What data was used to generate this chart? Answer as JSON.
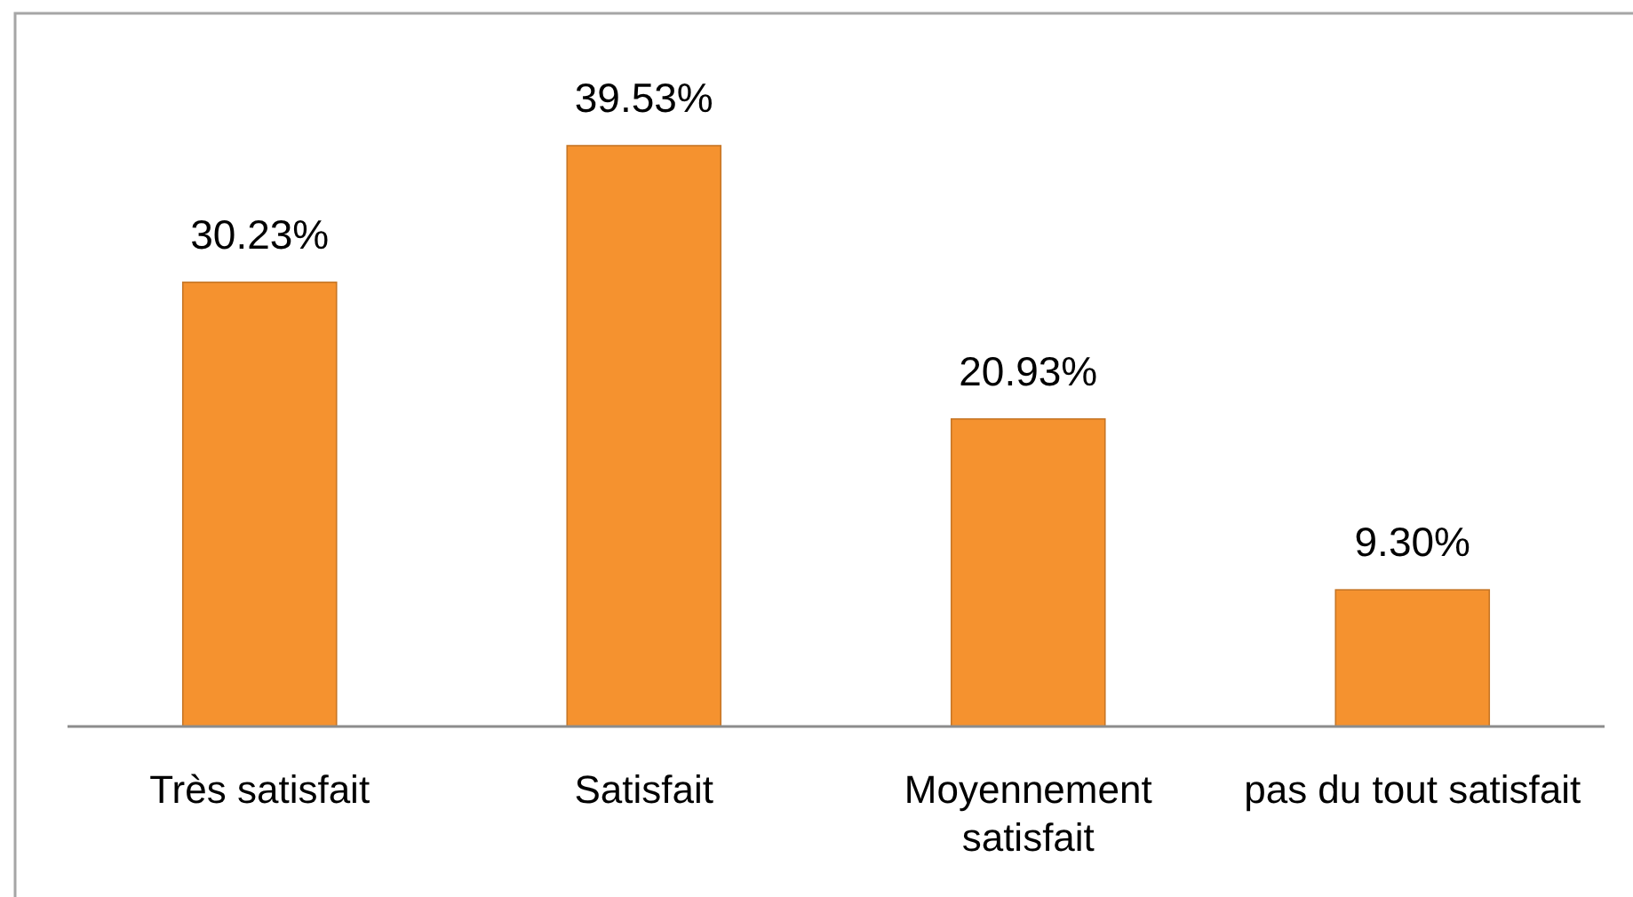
{
  "chart_data": {
    "type": "bar",
    "categories": [
      "Très satisfait",
      "Satisfait",
      "Moyennement satisfait",
      "pas du tout satisfait"
    ],
    "values": [
      30.23,
      39.53,
      20.93,
      9.3
    ],
    "color": "#f5922f",
    "value_labels": [
      "30.23%",
      "39.53%",
      "20.93%",
      "9.30%"
    ]
  }
}
